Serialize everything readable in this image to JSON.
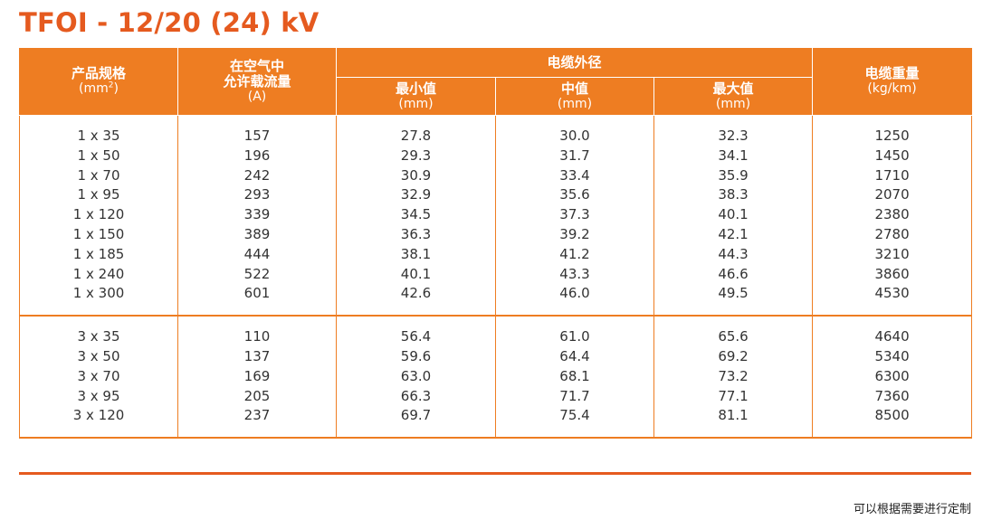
{
  "title": "TFOI - 12/20 (24) kV",
  "header": {
    "col1": {
      "label": "产品规格",
      "unit": "(mm",
      "unit_sup": "2",
      "unit_end": ")"
    },
    "col2": {
      "label_line1": "在空气中",
      "label_line2": "允许载流量",
      "unit": "(A)"
    },
    "group": {
      "label": "电缆外径"
    },
    "col3": {
      "label": "最小值",
      "unit": "(mm)"
    },
    "col4": {
      "label": "中值",
      "unit": "(mm)"
    },
    "col5": {
      "label": "最大值",
      "unit": "(mm)"
    },
    "col6": {
      "label": "电缆重量",
      "unit": "(kg/km)"
    }
  },
  "group1": [
    {
      "spec": "1 x 35",
      "ampacity": "157",
      "min": "27.8",
      "mid": "30.0",
      "max": "32.3",
      "weight": "1250"
    },
    {
      "spec": "1 x 50",
      "ampacity": "196",
      "min": "29.3",
      "mid": "31.7",
      "max": "34.1",
      "weight": "1450"
    },
    {
      "spec": "1 x 70",
      "ampacity": "242",
      "min": "30.9",
      "mid": "33.4",
      "max": "35.9",
      "weight": "1710"
    },
    {
      "spec": "1 x 95",
      "ampacity": "293",
      "min": "32.9",
      "mid": "35.6",
      "max": "38.3",
      "weight": "2070"
    },
    {
      "spec": "1 x 120",
      "ampacity": "339",
      "min": "34.5",
      "mid": "37.3",
      "max": "40.1",
      "weight": "2380"
    },
    {
      "spec": "1 x 150",
      "ampacity": "389",
      "min": "36.3",
      "mid": "39.2",
      "max": "42.1",
      "weight": "2780"
    },
    {
      "spec": "1 x 185",
      "ampacity": "444",
      "min": "38.1",
      "mid": "41.2",
      "max": "44.3",
      "weight": "3210"
    },
    {
      "spec": "1 x 240",
      "ampacity": "522",
      "min": "40.1",
      "mid": "43.3",
      "max": "46.6",
      "weight": "3860"
    },
    {
      "spec": "1 x 300",
      "ampacity": "601",
      "min": "42.6",
      "mid": "46.0",
      "max": "49.5",
      "weight": "4530"
    }
  ],
  "group2": [
    {
      "spec": "3 x 35",
      "ampacity": "110",
      "min": "56.4",
      "mid": "61.0",
      "max": "65.6",
      "weight": "4640"
    },
    {
      "spec": "3 x 50",
      "ampacity": "137",
      "min": "59.6",
      "mid": "64.4",
      "max": "69.2",
      "weight": "5340"
    },
    {
      "spec": "3 x 70",
      "ampacity": "169",
      "min": "63.0",
      "mid": "68.1",
      "max": "73.2",
      "weight": "6300"
    },
    {
      "spec": "3 x 95",
      "ampacity": "205",
      "min": "66.3",
      "mid": "71.7",
      "max": "77.1",
      "weight": "7360"
    },
    {
      "spec": "3 x 120",
      "ampacity": "237",
      "min": "69.7",
      "mid": "75.4",
      "max": "81.1",
      "weight": "8500"
    }
  ],
  "footer": "可以根据需要进行定制",
  "colors": {
    "accent": "#ee7d22",
    "title": "#e55a1f"
  }
}
